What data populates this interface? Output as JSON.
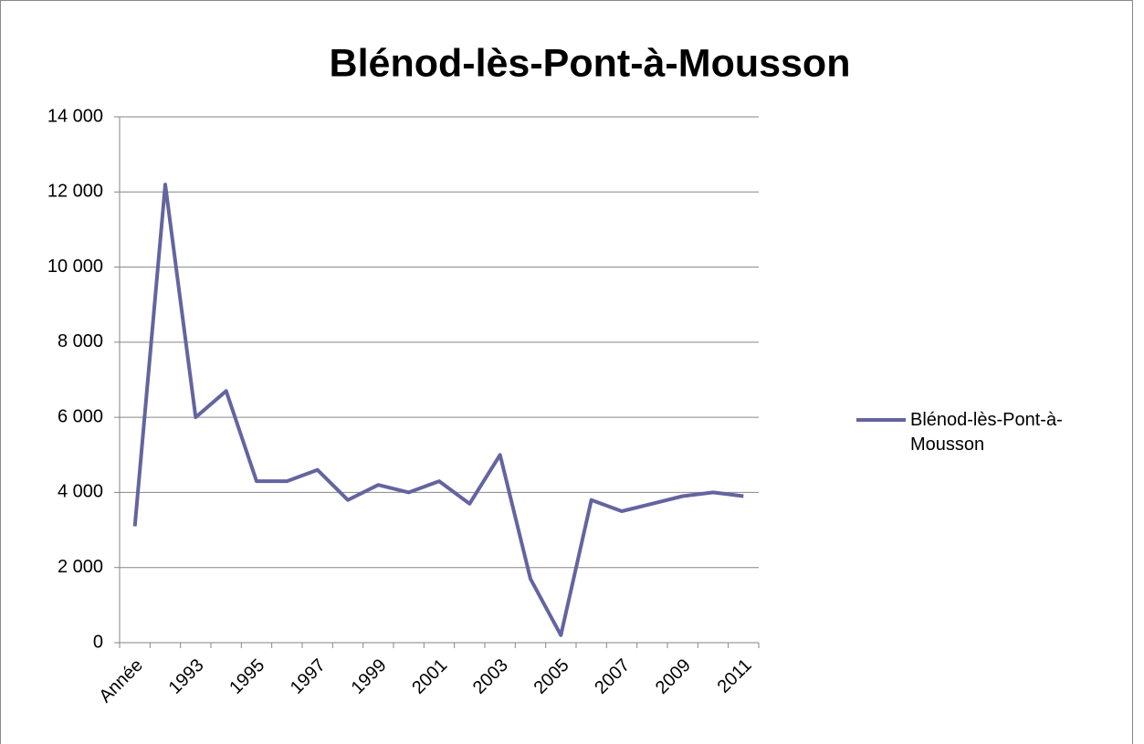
{
  "chart_data": {
    "type": "line",
    "title": "Blénod-lès-Pont-à-Mousson",
    "categories": [
      "Année",
      null,
      "1993",
      null,
      "1995",
      null,
      "1997",
      null,
      "1999",
      null,
      "2001",
      null,
      "2003",
      null,
      "2005",
      null,
      "2007",
      null,
      "2009",
      null,
      "2011"
    ],
    "series": [
      {
        "name": "Blénod-lès-Pont-à-Mousson",
        "color": "#6464a0",
        "values": [
          3100,
          12200,
          6000,
          6700,
          4300,
          4300,
          4600,
          3800,
          4200,
          4000,
          4300,
          3700,
          5000,
          1700,
          200,
          3800,
          3500,
          3700,
          3900,
          4000,
          3900
        ]
      }
    ],
    "ylim": [
      0,
      14000
    ],
    "yticks": [
      0,
      {
        "value": 2000,
        "label": "2 000"
      },
      {
        "value": 4000,
        "label": "4 000"
      },
      {
        "value": 6000,
        "label": "6 000"
      },
      {
        "value": 8000,
        "label": "8 000"
      },
      {
        "value": 10000,
        "label": "10 000"
      },
      {
        "value": 12000,
        "label": "12 000"
      },
      {
        "value": 14000,
        "label": "14 000"
      }
    ],
    "grid": true,
    "legend": "right"
  }
}
